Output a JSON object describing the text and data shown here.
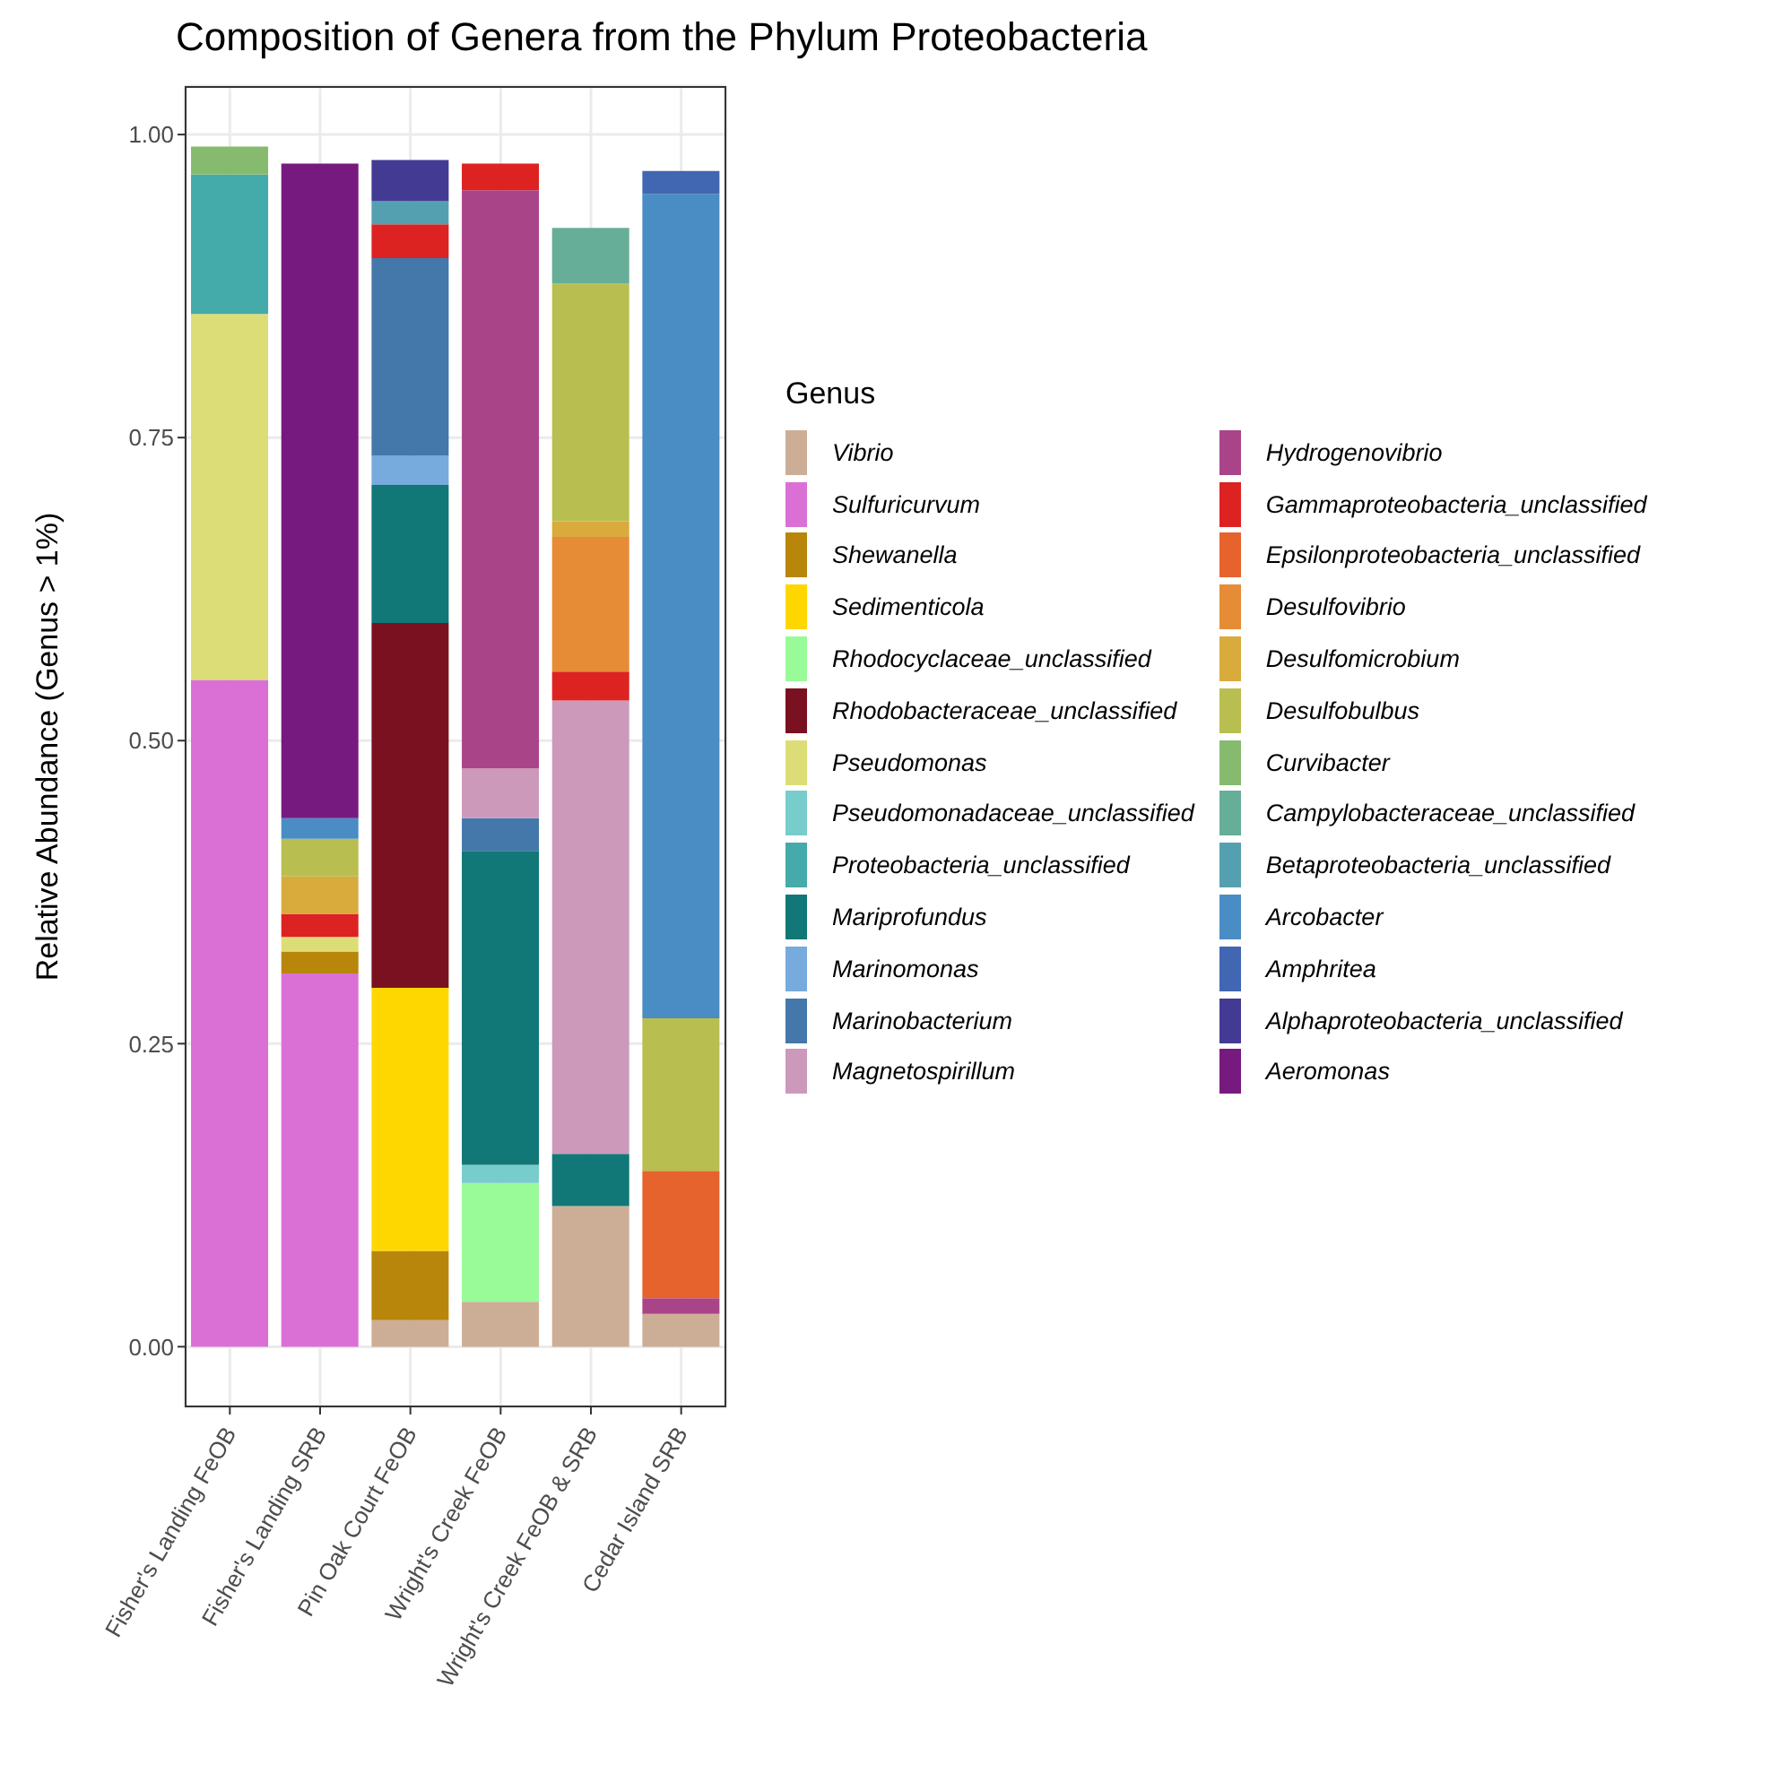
{
  "chart_data": {
    "type": "bar",
    "stacked": true,
    "title": "Composition of Genera from the Phylum Proteobacteria",
    "ylabel": "Relative Abundance (Genus > 1%)",
    "legend_title": "Genus",
    "legend": "right",
    "grid": true,
    "categories": [
      "Fisher's Landing FeOB",
      "Fisher's Landing SRB",
      "Pin Oak Court FeOB",
      "Wright's Creek FeOB",
      "Wright's Creek FeOB & SRB",
      "Cedar Island SRB"
    ],
    "ylim": [
      -0.05,
      1.04
    ],
    "yticks": [
      {
        "value": 0,
        "label": "0.00"
      },
      {
        "value": 0.25,
        "label": "0.25"
      },
      {
        "value": 0.5,
        "label": "0.50"
      },
      {
        "value": 0.75,
        "label": "0.75"
      },
      {
        "value": 1,
        "label": "1.00"
      }
    ],
    "series": [
      {
        "name": "Vibrio",
        "color": "#ccae96",
        "values": [
          null,
          null,
          0.022,
          0.037,
          0.116,
          0.027
        ]
      },
      {
        "name": "Sulfuricurvum",
        "color": "#da70d6",
        "values": [
          0.55,
          0.308,
          null,
          null,
          null,
          null
        ]
      },
      {
        "name": "Shewanella",
        "color": "#b8860b",
        "values": [
          null,
          0.018,
          0.057,
          null,
          null,
          null
        ]
      },
      {
        "name": "Sedimenticola",
        "color": "#ffd700",
        "values": [
          null,
          null,
          0.217,
          null,
          null,
          null
        ]
      },
      {
        "name": "Rhodocyclaceae_unclassified",
        "color": "#98fb98",
        "values": [
          null,
          null,
          null,
          0.098,
          null,
          null
        ]
      },
      {
        "name": "Rhodobacteraceae_unclassified",
        "color": "#7a1120",
        "values": [
          null,
          null,
          0.301,
          null,
          null,
          null
        ]
      },
      {
        "name": "Pseudomonas",
        "color": "#dddd77",
        "values": [
          0.302,
          0.012,
          null,
          null,
          null,
          null
        ]
      },
      {
        "name": "Pseudomonadaceae_unclassified",
        "color": "#77cccc",
        "values": [
          null,
          null,
          null,
          0.015,
          null,
          null
        ]
      },
      {
        "name": "Proteobacteria_unclassified",
        "color": "#44aaaa",
        "values": [
          0.115,
          null,
          null,
          null,
          null,
          null
        ]
      },
      {
        "name": "Mariprofundus",
        "color": "#117777",
        "values": [
          null,
          null,
          0.114,
          0.259,
          0.043,
          null
        ]
      },
      {
        "name": "Marinomonas",
        "color": "#77aadd",
        "values": [
          null,
          null,
          0.024,
          null,
          null,
          null
        ]
      },
      {
        "name": "Marinobacterium",
        "color": "#4477aa",
        "values": [
          null,
          null,
          0.163,
          0.027,
          null,
          null
        ]
      },
      {
        "name": "Magnetospirillum",
        "color": "#cc99bb",
        "values": [
          null,
          null,
          null,
          0.041,
          0.374,
          null
        ]
      },
      {
        "name": "Hydrogenovibrio",
        "color": "#aa4488",
        "values": [
          null,
          null,
          null,
          0.477,
          null,
          0.013
        ]
      },
      {
        "name": "Gammaproteobacteria_unclassified",
        "color": "#dd2222",
        "values": [
          null,
          0.019,
          0.028,
          0.022,
          0.024,
          null
        ]
      },
      {
        "name": "Epsilonproteobacteria_unclassified",
        "color": "#e6632e",
        "values": [
          null,
          null,
          null,
          null,
          null,
          0.105
        ]
      },
      {
        "name": "Desulfovibrio",
        "color": "#e68c36",
        "values": [
          null,
          null,
          null,
          null,
          0.111,
          null
        ]
      },
      {
        "name": "Desulfomicrobium",
        "color": "#d9ab3d",
        "values": [
          null,
          0.031,
          null,
          null,
          0.013,
          null
        ]
      },
      {
        "name": "Desulfobulbus",
        "color": "#b8be50",
        "values": [
          null,
          0.031,
          null,
          null,
          0.196,
          0.126
        ]
      },
      {
        "name": "Curvibacter",
        "color": "#86bb6f",
        "values": [
          0.023,
          null,
          null,
          null,
          null,
          null
        ]
      },
      {
        "name": "Campylobacteraceae_unclassified",
        "color": "#66ae98",
        "values": [
          null,
          null,
          null,
          null,
          0.046,
          null
        ]
      },
      {
        "name": "Betaproteobacteria_unclassified",
        "color": "#54a0b0",
        "values": [
          null,
          null,
          0.019,
          null,
          null,
          null
        ]
      },
      {
        "name": "Arcobacter",
        "color": "#4a8cc4",
        "values": [
          null,
          0.017,
          null,
          null,
          null,
          0.68
        ]
      },
      {
        "name": "Amphritea",
        "color": "#4166b2",
        "values": [
          null,
          null,
          null,
          null,
          null,
          0.019
        ]
      },
      {
        "name": "Alphaproteobacteria_unclassified",
        "color": "#433b93",
        "values": [
          null,
          null,
          0.034,
          null,
          null,
          null
        ]
      },
      {
        "name": "Aeromonas",
        "color": "#771a7f",
        "values": [
          null,
          0.54,
          null,
          null,
          null,
          null
        ]
      }
    ]
  }
}
